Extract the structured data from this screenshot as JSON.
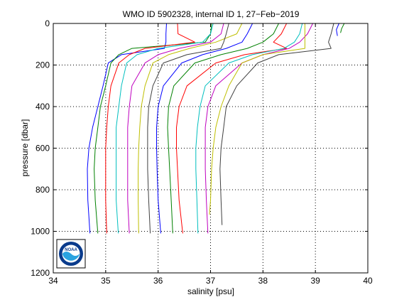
{
  "chart_data": {
    "type": "line",
    "title": "WMO ID 5902328, internal ID 1, 27−Feb−2019",
    "xlabel": "salinity [psu]",
    "ylabel": "pressure [dbar]",
    "xlim": [
      34,
      40
    ],
    "ylim": [
      0,
      1200
    ],
    "y_reversed": true,
    "grid": true,
    "x_ticks": [
      "34",
      "35",
      "36",
      "37",
      "38",
      "39",
      "40"
    ],
    "y_ticks": [
      "0",
      "200",
      "400",
      "600",
      "800",
      "1000",
      "1200"
    ],
    "logo": {
      "text": "NOAA",
      "colors": {
        "outer": "#0a3b8c",
        "inner": "#ffffff",
        "wave": "#2aa3e0"
      }
    },
    "series": [
      {
        "color": "#0000ff",
        "x": [
          36.16,
          36.15,
          36.15,
          36.12,
          35.3,
          35.05,
          34.95,
          34.85,
          34.75,
          34.68,
          34.65,
          34.66,
          34.7
        ],
        "y": [
          0,
          50,
          90,
          120,
          150,
          190,
          300,
          400,
          500,
          600,
          700,
          850,
          1010
        ]
      },
      {
        "color": "#008000",
        "x": [
          37.02,
          37.0,
          36.9,
          35.5,
          35.25,
          35.1,
          35.0,
          34.9,
          34.85,
          34.8,
          34.78,
          34.8,
          34.85
        ],
        "y": [
          0,
          50,
          90,
          120,
          150,
          190,
          300,
          400,
          500,
          600,
          700,
          850,
          1010
        ]
      },
      {
        "color": "#ff0000",
        "x": [
          36.37,
          36.38,
          36.7,
          35.75,
          35.45,
          35.25,
          35.1,
          35.05,
          35.02,
          35.0,
          35.0,
          35.0,
          35.02
        ],
        "y": [
          0,
          50,
          90,
          120,
          150,
          190,
          300,
          400,
          500,
          600,
          700,
          850,
          1010
        ]
      },
      {
        "color": "#00bfbf",
        "x": [
          37.05,
          37.0,
          36.85,
          36.0,
          35.6,
          35.4,
          35.3,
          35.25,
          35.2,
          35.2,
          35.2,
          35.2,
          35.24
        ],
        "y": [
          0,
          50,
          90,
          120,
          150,
          190,
          300,
          400,
          500,
          600,
          700,
          850,
          1010
        ]
      },
      {
        "color": "#bf00bf",
        "x": [
          37.25,
          37.2,
          37.0,
          36.4,
          36.0,
          35.75,
          35.5,
          35.45,
          35.42,
          35.42,
          35.42,
          35.42,
          35.45
        ],
        "y": [
          0,
          50,
          90,
          120,
          150,
          190,
          300,
          400,
          500,
          600,
          700,
          850,
          1010
        ]
      },
      {
        "color": "#bfbf00",
        "x": [
          37.6,
          37.5,
          37.1,
          36.6,
          36.2,
          35.9,
          35.75,
          35.68,
          35.65,
          35.63,
          35.62,
          35.62,
          35.63
        ],
        "y": [
          0,
          50,
          90,
          120,
          150,
          190,
          300,
          400,
          500,
          600,
          700,
          850,
          1010
        ]
      },
      {
        "color": "#404040",
        "x": [
          37.35,
          37.3,
          37.25,
          37.2,
          36.55,
          36.1,
          35.9,
          35.82,
          35.8,
          35.8,
          35.8,
          35.82,
          35.85
        ],
        "y": [
          0,
          50,
          90,
          120,
          150,
          190,
          300,
          400,
          500,
          600,
          700,
          850,
          1010
        ]
      },
      {
        "color": "#0000ff",
        "x": [
          37.8,
          37.7,
          37.6,
          37.3,
          36.85,
          36.45,
          36.1,
          36.0,
          35.97,
          35.97,
          35.98,
          36.0,
          36.05
        ],
        "y": [
          0,
          50,
          90,
          120,
          150,
          190,
          300,
          400,
          500,
          600,
          700,
          850,
          1010
        ]
      },
      {
        "color": "#008000",
        "x": [
          38.3,
          38.2,
          38.0,
          37.7,
          37.2,
          36.7,
          36.3,
          36.2,
          36.18,
          36.2,
          36.22,
          36.25,
          36.28
        ],
        "y": [
          0,
          50,
          90,
          120,
          150,
          190,
          300,
          400,
          500,
          600,
          700,
          850,
          1010
        ]
      },
      {
        "color": "#ff0000",
        "x": [
          38.45,
          38.35,
          38.2,
          38.45,
          37.65,
          37.1,
          36.55,
          36.4,
          36.35,
          36.35,
          36.37,
          36.4,
          36.47
        ],
        "y": [
          0,
          50,
          90,
          120,
          150,
          190,
          300,
          400,
          500,
          600,
          700,
          850,
          1010
        ]
      },
      {
        "color": "#00bfbf",
        "x": [
          38.75,
          38.7,
          38.6,
          38.4,
          37.8,
          37.35,
          36.9,
          36.8,
          36.75,
          36.72,
          36.72,
          36.74,
          36.76
        ],
        "y": [
          0,
          50,
          90,
          120,
          150,
          190,
          300,
          400,
          500,
          600,
          700,
          850,
          1010
        ]
      },
      {
        "color": "#bf00bf",
        "x": [
          38.95,
          38.85,
          38.7,
          38.5,
          38.0,
          37.6,
          37.1,
          36.95,
          36.9,
          36.9,
          36.9,
          36.92,
          36.95
        ],
        "y": [
          0,
          50,
          90,
          120,
          150,
          190,
          300,
          400,
          500,
          600,
          700,
          850,
          1010
        ]
      },
      {
        "color": "#bfbf00",
        "x": [
          38.8,
          38.8,
          38.8,
          38.8,
          38.0,
          37.6,
          37.35,
          37.2,
          37.1,
          37.05,
          37.02,
          37.0,
          36.98
        ],
        "y": [
          0,
          50,
          90,
          120,
          150,
          190,
          300,
          400,
          500,
          600,
          700,
          850,
          920
        ]
      },
      {
        "color": "#404040",
        "x": [
          39.35,
          39.3,
          39.25,
          39.3,
          38.3,
          37.9,
          37.5,
          37.3,
          37.25,
          37.2,
          37.18,
          37.2,
          37.22
        ],
        "y": [
          0,
          50,
          90,
          120,
          150,
          190,
          300,
          400,
          500,
          600,
          700,
          850,
          970
        ]
      },
      {
        "color": "#0000ff",
        "x": [
          39.45,
          39.4,
          39.42
        ],
        "y": [
          0,
          30,
          60
        ]
      },
      {
        "color": "#008000",
        "x": [
          39.55,
          39.5,
          39.48
        ],
        "y": [
          0,
          25,
          45
        ]
      }
    ]
  }
}
